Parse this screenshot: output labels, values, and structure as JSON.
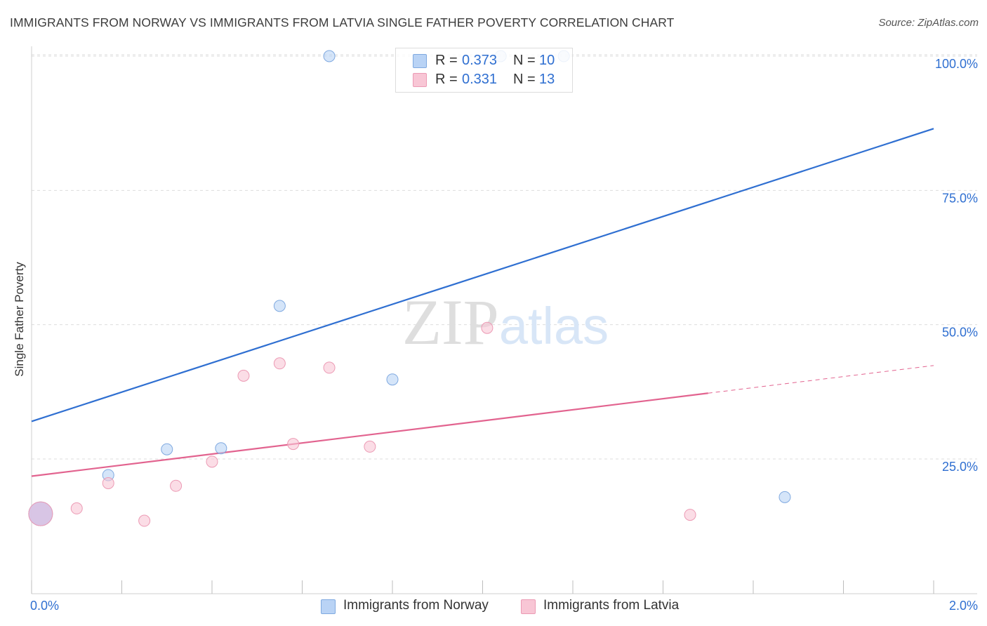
{
  "chart_data": {
    "type": "scatter",
    "title": "IMMIGRANTS FROM NORWAY VS IMMIGRANTS FROM LATVIA SINGLE FATHER POVERTY CORRELATION CHART",
    "source": "Source: ZipAtlas.com",
    "xlabel": "",
    "ylabel": "Single Father Poverty",
    "xlim": [
      0,
      2.0
    ],
    "ylim": [
      0,
      105
    ],
    "x_tick_labels": [
      "0.0%",
      "2.0%"
    ],
    "y_ticks": [
      25,
      50,
      75,
      100
    ],
    "y_tick_labels": [
      "25.0%",
      "50.0%",
      "75.0%",
      "100.0%"
    ],
    "watermark": "ZIPatlas",
    "colors": {
      "norway_fill": "#b9d3f5",
      "norway_stroke": "#7fa9e0",
      "norway_line": "#2f6fd1",
      "latvia_fill": "#f8c6d5",
      "latvia_stroke": "#ec9ab4",
      "latvia_line": "#e2638f",
      "grid": "#dddddd",
      "value_text": "#2f6fd1"
    },
    "series": [
      {
        "name": "Immigrants from Norway",
        "r_label": "R =",
        "r_value": "0.373",
        "n_label": "N =",
        "n_value": "10",
        "points": [
          {
            "x": 0.02,
            "y": 14.8,
            "big": true
          },
          {
            "x": 0.17,
            "y": 22.0
          },
          {
            "x": 0.3,
            "y": 26.8
          },
          {
            "x": 0.42,
            "y": 27.0
          },
          {
            "x": 0.55,
            "y": 53.5
          },
          {
            "x": 0.66,
            "y": 100.0
          },
          {
            "x": 0.8,
            "y": 39.8
          },
          {
            "x": 1.04,
            "y": 100.0
          },
          {
            "x": 1.18,
            "y": 100.0
          },
          {
            "x": 1.67,
            "y": 17.9
          }
        ],
        "trend": {
          "x0": 0.0,
          "y0": 32.0,
          "x1": 2.0,
          "y1": 86.5,
          "dashed_from": null
        }
      },
      {
        "name": "Immigrants from Latvia",
        "r_label": "R =",
        "r_value": "0.331",
        "n_label": "N =",
        "n_value": "13",
        "points": [
          {
            "x": 0.02,
            "y": 14.8,
            "big": true
          },
          {
            "x": 0.1,
            "y": 15.8
          },
          {
            "x": 0.17,
            "y": 20.5
          },
          {
            "x": 0.25,
            "y": 13.5
          },
          {
            "x": 0.32,
            "y": 20.0
          },
          {
            "x": 0.4,
            "y": 24.5
          },
          {
            "x": 0.47,
            "y": 40.5
          },
          {
            "x": 0.55,
            "y": 42.8
          },
          {
            "x": 0.58,
            "y": 27.8
          },
          {
            "x": 0.66,
            "y": 42.0
          },
          {
            "x": 0.75,
            "y": 27.3
          },
          {
            "x": 1.01,
            "y": 49.4
          },
          {
            "x": 1.46,
            "y": 14.6
          }
        ],
        "trend": {
          "x0": 0.0,
          "y0": 21.8,
          "x1": 2.0,
          "y1": 42.4,
          "dashed_from": 1.5
        }
      }
    ]
  }
}
